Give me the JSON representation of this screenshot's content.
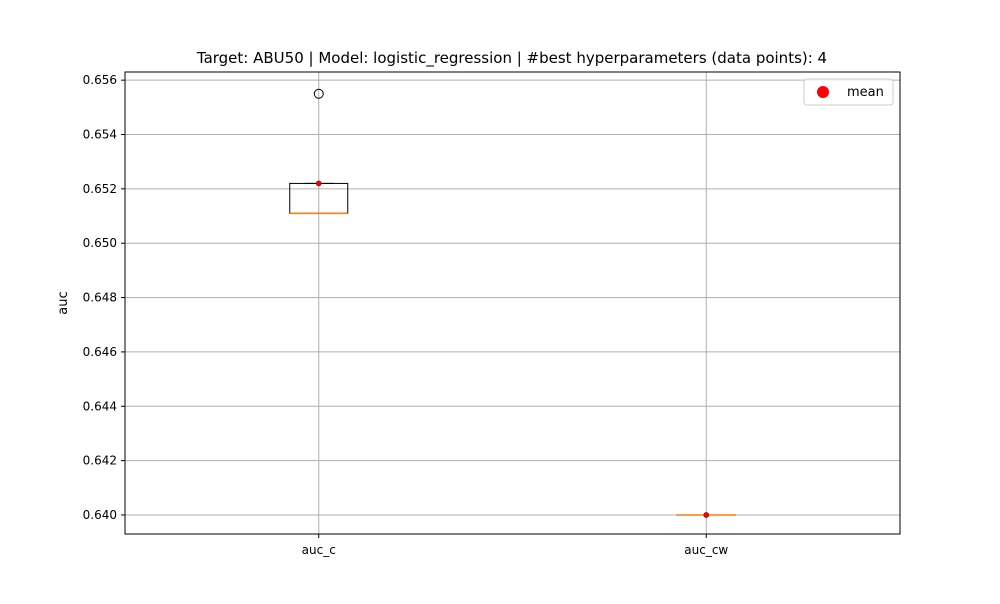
{
  "chart_data": {
    "type": "box",
    "title": "Target: ABU50 | Model: logistic_regression | #best hyperparameters (data points): 4",
    "xlabel": "",
    "ylabel": "auc",
    "ylim": [
      0.6393,
      0.6563
    ],
    "yticks": [
      "0.640",
      "0.642",
      "0.644",
      "0.646",
      "0.648",
      "0.650",
      "0.652",
      "0.654",
      "0.656"
    ],
    "ytick_values": [
      0.64,
      0.642,
      0.644,
      0.646,
      0.648,
      0.65,
      0.652,
      0.654,
      0.656
    ],
    "grid": true,
    "legend": {
      "position": "top-right",
      "entries": [
        {
          "label": "mean",
          "color": "#ff0000",
          "marker": "circle"
        }
      ]
    },
    "categories": [
      "auc_c",
      "auc_cw"
    ],
    "boxes": [
      {
        "name": "auc_c",
        "whisker_low": 0.6511,
        "q1": 0.6511,
        "median": 0.6511,
        "q3": 0.6522,
        "whisker_high": 0.6522,
        "outliers": [
          0.6555
        ],
        "mean": 0.6522
      },
      {
        "name": "auc_cw",
        "whisker_low": 0.64,
        "q1": 0.64,
        "median": 0.64,
        "q3": 0.64,
        "whisker_high": 0.64,
        "outliers": [],
        "mean": 0.64
      }
    ],
    "colors": {
      "box": "#000000",
      "median": "#ff7f0e",
      "mean": "#ff0000",
      "grid": "#b0b0b0"
    }
  }
}
